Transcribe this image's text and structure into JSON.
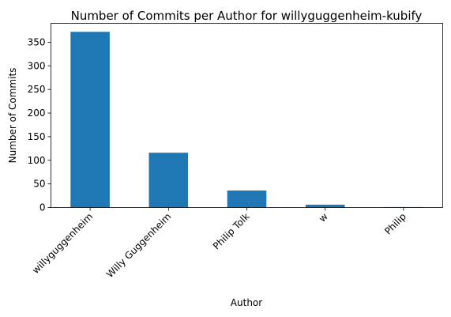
{
  "chart_data": {
    "type": "bar",
    "title": "Number of Commits per Author for willyguggenheim-kubify",
    "xlabel": "Author",
    "ylabel": "Number of Commits",
    "categories": [
      "willyguggenheim",
      "Willy Guggenheim",
      "Philip Tolk",
      "w",
      "Philip"
    ],
    "values": [
      372,
      116,
      36,
      6,
      1
    ],
    "ylim": [
      0,
      390
    ],
    "yticks": [
      0,
      50,
      100,
      150,
      200,
      250,
      300,
      350
    ],
    "grid": false,
    "bar_color": "#1f77b4"
  }
}
